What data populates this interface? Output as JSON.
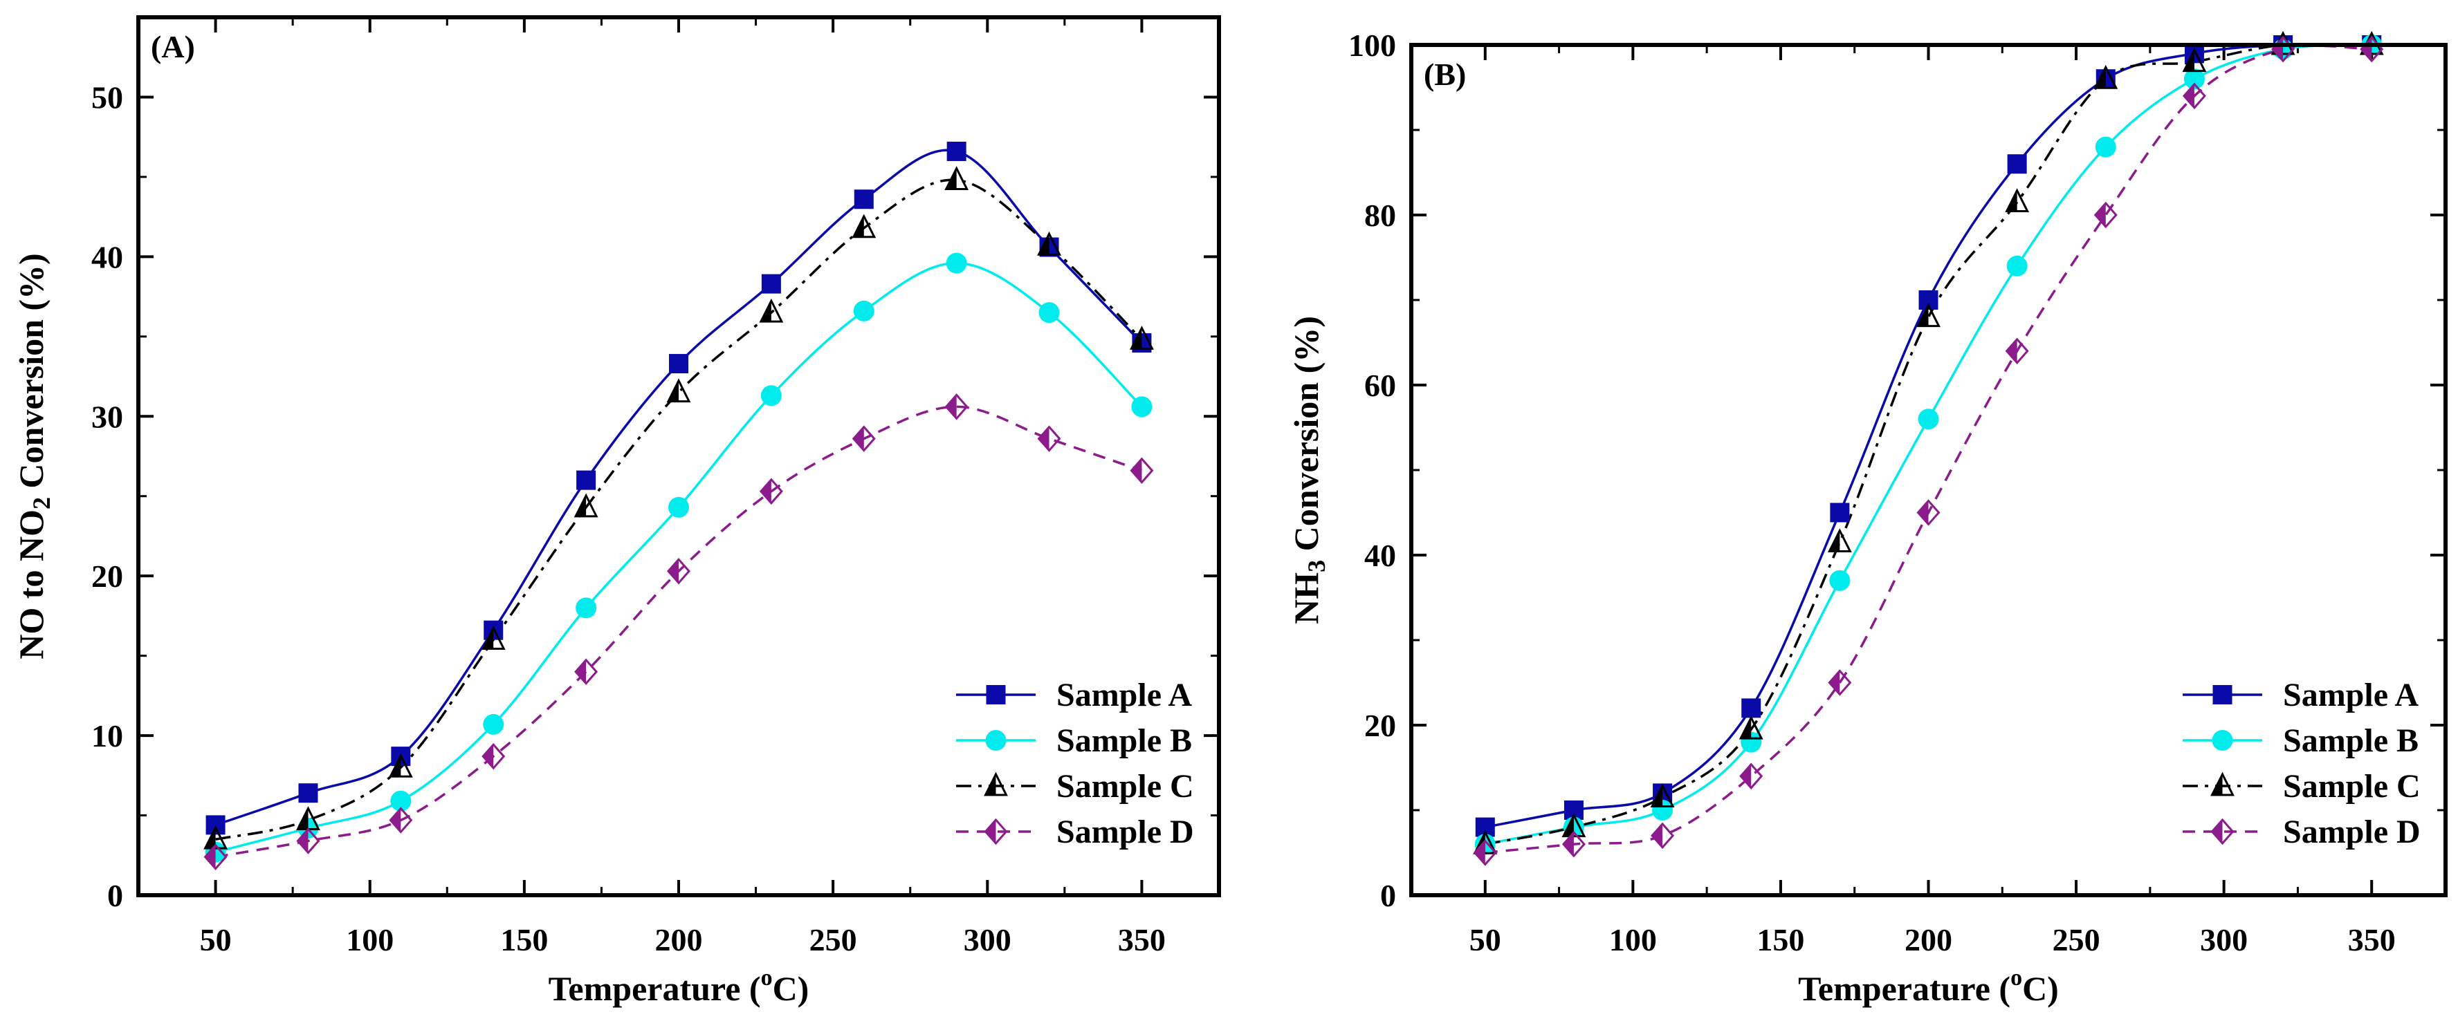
{
  "colors": {
    "sample_a": "#0a0aa8",
    "sample_b": "#00ecec",
    "sample_c": "#000000",
    "sample_d": "#8c1b8c"
  },
  "chart_data": [
    {
      "panel_label": "(A)",
      "type": "line",
      "xlabel": "Temperature (",
      "xlabel_sup": "o",
      "xlabel_tail": "C)",
      "ylabel": "NO to NO",
      "ylabel_sub": "2",
      "ylabel_tail": " Conversion (%)",
      "xlim": [
        25,
        375
      ],
      "ylim": [
        0,
        55
      ],
      "xticks": [
        "50",
        "100",
        "150",
        "200",
        "250",
        "300",
        "350"
      ],
      "yticks": [
        "0",
        "10",
        "20",
        "30",
        "40",
        "50"
      ],
      "legend_position": "bottom-right",
      "x": [
        50,
        80,
        110,
        140,
        170,
        200,
        230,
        260,
        290,
        320,
        350
      ],
      "series": [
        {
          "name": "Sample A",
          "values": [
            4.4,
            6.4,
            8.7,
            16.6,
            26.0,
            33.3,
            38.3,
            43.6,
            46.6,
            40.6,
            34.6
          ]
        },
        {
          "name": "Sample B",
          "values": [
            2.7,
            4.2,
            5.9,
            10.7,
            18.0,
            24.3,
            31.3,
            36.6,
            39.6,
            36.5,
            30.6
          ]
        },
        {
          "name": "Sample C",
          "values": [
            3.5,
            4.7,
            8.0,
            16.0,
            24.3,
            31.5,
            36.5,
            41.8,
            44.8,
            40.7,
            34.8
          ]
        },
        {
          "name": "Sample D",
          "values": [
            2.4,
            3.4,
            4.7,
            8.7,
            14.0,
            20.3,
            25.3,
            28.6,
            30.6,
            28.6,
            26.6
          ]
        }
      ]
    },
    {
      "panel_label": "(B)",
      "type": "line",
      "xlabel": "Temperature (",
      "xlabel_sup": "o",
      "xlabel_tail": "C)",
      "ylabel": "NH",
      "ylabel_sub": "3",
      "ylabel_tail": " Conversion (%)",
      "xlim": [
        25,
        375
      ],
      "ylim": [
        0,
        100
      ],
      "xticks": [
        "50",
        "100",
        "150",
        "200",
        "250",
        "300",
        "350"
      ],
      "yticks": [
        "0",
        "20",
        "40",
        "60",
        "80",
        "100"
      ],
      "legend_position": "bottom-right",
      "x": [
        50,
        80,
        110,
        140,
        170,
        200,
        230,
        260,
        290,
        320,
        350
      ],
      "series": [
        {
          "name": "Sample A",
          "values": [
            8,
            10,
            12,
            22,
            45,
            70,
            86,
            96,
            99,
            100,
            100
          ]
        },
        {
          "name": "Sample B",
          "values": [
            6,
            8,
            10,
            18,
            37,
            56,
            74,
            88,
            96,
            99.5,
            100
          ]
        },
        {
          "name": "Sample C",
          "values": [
            6,
            8,
            11.5,
            19.5,
            41.5,
            68,
            81.5,
            96,
            98,
            100,
            100
          ]
        },
        {
          "name": "Sample D",
          "values": [
            5,
            6,
            7,
            14,
            25,
            45,
            64,
            80,
            94,
            99.5,
            99.5
          ]
        }
      ]
    }
  ]
}
